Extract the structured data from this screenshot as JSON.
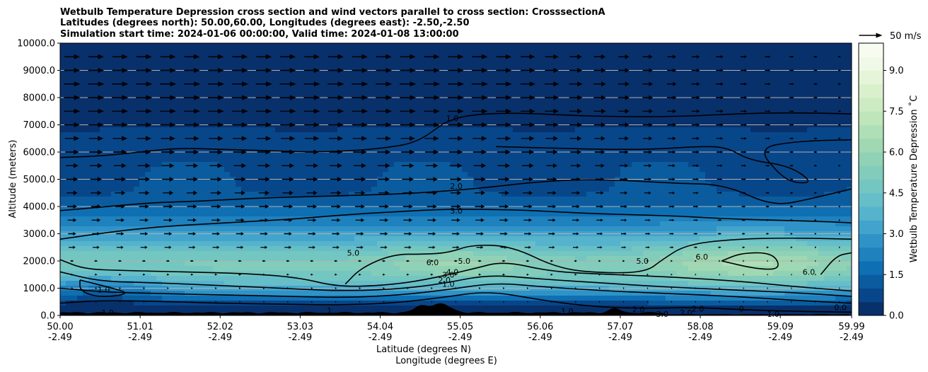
{
  "chart_data": {
    "type": "contour",
    "title_lines": [
      "Wetbulb Temperature Depression cross section and wind vectors parallel to cross section: CrosssectionA",
      "Latitudes (degrees north): 50.00,60.00, Longitudes (degrees east): -2.50,-2.50",
      "Simulation start time: 2024-01-06 00:00:00, Valid time: 2024-01-08 13:00:00"
    ],
    "ylabel": "Altitude (meters)",
    "xlabel_lines": [
      "Latitude (degrees N)",
      "Longitude (degrees E)"
    ],
    "ylim": [
      0,
      10000
    ],
    "xlim": [
      50.0,
      59.99
    ],
    "y_ticks": [
      "0.0",
      "1000.0",
      "2000.0",
      "3000.0",
      "4000.0",
      "5000.0",
      "6000.0",
      "7000.0",
      "8000.0",
      "9000.0",
      "10000.0"
    ],
    "x_ticks": [
      {
        "value": 50.0,
        "lat": "50.00",
        "lon": "-2.49"
      },
      {
        "value": 51.01,
        "lat": "51.01",
        "lon": "-2.49"
      },
      {
        "value": 52.02,
        "lat": "52.02",
        "lon": "-2.49"
      },
      {
        "value": 53.03,
        "lat": "53.03",
        "lon": "-2.49"
      },
      {
        "value": 54.04,
        "lat": "54.04",
        "lon": "-2.49"
      },
      {
        "value": 55.05,
        "lat": "55.05",
        "lon": "-2.49"
      },
      {
        "value": 56.06,
        "lat": "56.06",
        "lon": "-2.49"
      },
      {
        "value": 57.07,
        "lat": "57.07",
        "lon": "-2.49"
      },
      {
        "value": 58.08,
        "lat": "58.08",
        "lon": "-2.49"
      },
      {
        "value": 59.09,
        "lat": "59.09",
        "lon": "-2.49"
      },
      {
        "value": 59.99,
        "lat": "59.99",
        "lon": "-2.49"
      }
    ],
    "grid": "horizontal",
    "colorbar": {
      "label": "Wetbulb Temperature Depression $^\\circ$C",
      "label_display": "Wetbulb Temperature Depression ˚C",
      "min": 0.0,
      "max": 10.0,
      "ticks": [
        "0.0",
        "1.5",
        "3.0",
        "4.5",
        "6.0",
        "7.5",
        "9.0"
      ],
      "tick_values": [
        0,
        1.5,
        3.0,
        4.5,
        6.0,
        7.5,
        9.0
      ],
      "colors": [
        "#08306b",
        "#08468a",
        "#0a5c9f",
        "#0f6fb3",
        "#1f81be",
        "#2f93c8",
        "#42a4cd",
        "#56b3cc",
        "#66bec8",
        "#74c6c1",
        "#82ccbb",
        "#90d2b5",
        "#9fd8b2",
        "#afdfb6",
        "#bfe5bb",
        "#cdebc3",
        "#daf0cd",
        "#e6f5d9",
        "#f0f9e7",
        "#f7fcf0"
      ]
    },
    "quiver_key": {
      "label": "50 m/s",
      "speed": 50
    },
    "wind_rows": [
      {
        "alt": 500,
        "speed": 3
      },
      {
        "alt": 1000,
        "speed": 6
      },
      {
        "alt": 1500,
        "speed": 9
      },
      {
        "alt": 2000,
        "speed": 12
      },
      {
        "alt": 2500,
        "speed": 15
      },
      {
        "alt": 3000,
        "speed": 17
      },
      {
        "alt": 3500,
        "speed": 19
      },
      {
        "alt": 4000,
        "speed": 21
      },
      {
        "alt": 4500,
        "speed": 23
      },
      {
        "alt": 5000,
        "speed": 25
      },
      {
        "alt": 5500,
        "speed": 27
      },
      {
        "alt": 6000,
        "speed": 29
      },
      {
        "alt": 6500,
        "speed": 31
      },
      {
        "alt": 7000,
        "speed": 33
      },
      {
        "alt": 7500,
        "speed": 34
      },
      {
        "alt": 8000,
        "speed": 35
      },
      {
        "alt": 8500,
        "speed": 35
      },
      {
        "alt": 9000,
        "speed": 34
      },
      {
        "alt": 9500,
        "speed": 33
      }
    ],
    "contours": [
      {
        "level": 1.0,
        "points": [
          [
            54.84,
            7050
          ],
          [
            55.1,
            7350
          ],
          [
            55.7,
            7450
          ],
          [
            56.4,
            7350
          ],
          [
            57.0,
            7300
          ],
          [
            57.8,
            7300
          ],
          [
            58.5,
            7400
          ],
          [
            59.2,
            7450
          ],
          [
            59.99,
            7400
          ]
        ]
      },
      {
        "level": 1.0,
        "points": [
          [
            50.0,
            5800
          ],
          [
            50.5,
            5850
          ],
          [
            51.0,
            6000
          ],
          [
            51.5,
            6150
          ],
          [
            52.0,
            6100
          ],
          [
            52.6,
            6050
          ],
          [
            53.2,
            6000
          ],
          [
            53.7,
            6050
          ],
          [
            54.1,
            6150
          ],
          [
            54.5,
            6350
          ],
          [
            54.84,
            7050
          ]
        ]
      },
      {
        "level": 1.0,
        "points": [
          [
            55.5,
            6200
          ],
          [
            56.2,
            6150
          ],
          [
            56.8,
            6100
          ],
          [
            57.5,
            6100
          ],
          [
            58.0,
            6200
          ],
          [
            58.4,
            6200
          ],
          [
            58.7,
            5700
          ],
          [
            59.2,
            5500
          ],
          [
            59.5,
            4900
          ],
          [
            59.3,
            4850
          ],
          [
            59.1,
            5100
          ],
          [
            58.8,
            6150
          ],
          [
            59.3,
            6400
          ],
          [
            59.99,
            6450
          ]
        ]
      },
      {
        "level": 2.0,
        "points": [
          [
            50.0,
            3850
          ],
          [
            50.6,
            4000
          ],
          [
            51.2,
            4150
          ],
          [
            51.8,
            4200
          ],
          [
            52.4,
            4300
          ],
          [
            53.0,
            4350
          ],
          [
            53.6,
            4400
          ],
          [
            54.2,
            4450
          ],
          [
            54.8,
            4550
          ],
          [
            55.4,
            4700
          ],
          [
            56.0,
            4900
          ],
          [
            56.6,
            5000
          ],
          [
            57.2,
            4950
          ],
          [
            57.8,
            4850
          ],
          [
            58.4,
            4800
          ],
          [
            59.0,
            4000
          ],
          [
            59.5,
            4300
          ],
          [
            59.99,
            4650
          ]
        ]
      },
      {
        "level": 3.0,
        "points": [
          [
            50.0,
            2800
          ],
          [
            50.6,
            3050
          ],
          [
            51.2,
            3250
          ],
          [
            51.8,
            3350
          ],
          [
            52.4,
            3450
          ],
          [
            53.0,
            3550
          ],
          [
            53.6,
            3700
          ],
          [
            54.2,
            3800
          ],
          [
            54.8,
            3900
          ],
          [
            55.4,
            3900
          ],
          [
            56.0,
            3850
          ],
          [
            56.6,
            3750
          ],
          [
            57.2,
            3700
          ],
          [
            57.8,
            3650
          ],
          [
            58.4,
            3550
          ],
          [
            59.0,
            3500
          ],
          [
            59.6,
            3450
          ],
          [
            59.99,
            3400
          ]
        ]
      },
      {
        "level": 5.0,
        "points": [
          [
            53.6,
            1150
          ],
          [
            53.8,
            1750
          ],
          [
            54.2,
            2250
          ],
          [
            54.6,
            2250
          ],
          [
            54.9,
            2300
          ],
          [
            55.2,
            2600
          ],
          [
            55.7,
            2550
          ],
          [
            56.3,
            1700
          ],
          [
            56.9,
            1550
          ],
          [
            57.4,
            1600
          ],
          [
            57.6,
            2050
          ],
          [
            57.9,
            2600
          ],
          [
            58.5,
            2800
          ],
          [
            59.2,
            2850
          ],
          [
            59.99,
            2800
          ]
        ]
      },
      {
        "level": 6.0,
        "points": [
          [
            58.35,
            2000
          ],
          [
            58.6,
            2300
          ],
          [
            59.0,
            2300
          ],
          [
            59.1,
            1700
          ],
          [
            58.8,
            1700
          ],
          [
            58.35,
            2000
          ]
        ]
      },
      {
        "level": 6.0,
        "points": [
          [
            59.6,
            1500
          ],
          [
            59.8,
            2200
          ],
          [
            59.99,
            2300
          ]
        ]
      },
      {
        "level": 4.0,
        "points": [
          [
            50.0,
            2050
          ],
          [
            50.3,
            1700
          ],
          [
            50.8,
            1650
          ],
          [
            51.5,
            1600
          ],
          [
            52.3,
            1550
          ],
          [
            53.0,
            1400
          ],
          [
            53.5,
            1050
          ],
          [
            54.1,
            1100
          ],
          [
            54.6,
            1300
          ],
          [
            55.2,
            1700
          ],
          [
            55.6,
            2000
          ],
          [
            56.2,
            1600
          ],
          [
            57.0,
            1500
          ],
          [
            57.8,
            1400
          ],
          [
            58.6,
            1250
          ],
          [
            59.3,
            1050
          ],
          [
            59.99,
            900
          ]
        ]
      },
      {
        "level": 3.0,
        "points": [
          [
            50.0,
            1600
          ],
          [
            50.5,
            1250
          ],
          [
            51.2,
            1200
          ],
          [
            52.0,
            1100
          ],
          [
            52.8,
            1000
          ],
          [
            53.5,
            900
          ],
          [
            54.2,
            950
          ],
          [
            54.8,
            1150
          ],
          [
            55.4,
            1500
          ],
          [
            56.0,
            1350
          ],
          [
            56.8,
            1200
          ],
          [
            57.6,
            1050
          ],
          [
            58.4,
            950
          ],
          [
            59.2,
            850
          ],
          [
            59.99,
            700
          ]
        ]
      },
      {
        "level": 2.0,
        "points": [
          [
            50.0,
            1000
          ],
          [
            50.6,
            850
          ],
          [
            51.3,
            800
          ],
          [
            52.1,
            750
          ],
          [
            52.9,
            700
          ],
          [
            53.6,
            650
          ],
          [
            54.3,
            750
          ],
          [
            54.9,
            950
          ],
          [
            55.5,
            1200
          ],
          [
            56.1,
            1050
          ],
          [
            56.9,
            900
          ],
          [
            57.7,
            800
          ],
          [
            58.5,
            700
          ],
          [
            59.3,
            550
          ],
          [
            59.99,
            450
          ]
        ]
      },
      {
        "level": 1.0,
        "points": [
          [
            50.0,
            450
          ],
          [
            50.5,
            550
          ],
          [
            51.2,
            520
          ],
          [
            52.0,
            450
          ],
          [
            52.7,
            420
          ],
          [
            53.5,
            380
          ],
          [
            54.2,
            450
          ],
          [
            54.8,
            650
          ],
          [
            55.4,
            900
          ],
          [
            56.0,
            600
          ],
          [
            56.6,
            350
          ],
          [
            57.3,
            250
          ],
          [
            58.0,
            300
          ],
          [
            58.7,
            200
          ],
          [
            59.3,
            150
          ],
          [
            59.99,
            120
          ]
        ]
      },
      {
        "level": 1.0,
        "points": [
          [
            50.25,
            1300
          ],
          [
            50.6,
            1050
          ],
          [
            50.9,
            800
          ],
          [
            50.5,
            650
          ],
          [
            50.25,
            900
          ],
          [
            50.25,
            1300
          ]
        ]
      }
    ],
    "contour_labels": [
      {
        "text": "1.0",
        "x": 54.95,
        "y": 7250
      },
      {
        "text": "2.0",
        "x": 55.0,
        "y": 4750
      },
      {
        "text": "3.0",
        "x": 55.0,
        "y": 3850
      },
      {
        "text": "5.0",
        "x": 53.7,
        "y": 2300
      },
      {
        "text": "6.0",
        "x": 54.7,
        "y": 1950
      },
      {
        "text": "5.0",
        "x": 55.1,
        "y": 2000
      },
      {
        "text": "4.0",
        "x": 54.95,
        "y": 1600
      },
      {
        "text": "3.0",
        "x": 54.9,
        "y": 1500
      },
      {
        "text": "2.0",
        "x": 54.85,
        "y": 1300
      },
      {
        "text": "1.0",
        "x": 54.9,
        "y": 1150
      },
      {
        "text": "1.0",
        "x": 50.55,
        "y": 950
      },
      {
        "text": "1.0",
        "x": 50.6,
        "y": 100
      },
      {
        "text": "1",
        "x": 53.4,
        "y": 180
      },
      {
        "text": "5.0",
        "x": 57.35,
        "y": 2000
      },
      {
        "text": "6.0",
        "x": 58.1,
        "y": 2150
      },
      {
        "text": "6.0",
        "x": 59.45,
        "y": 1600
      },
      {
        "text": "1.0",
        "x": 56.4,
        "y": 150
      },
      {
        "text": "2.0",
        "x": 57.3,
        "y": 220
      },
      {
        "text": "3.0",
        "x": 57.6,
        "y": 50
      },
      {
        "text": "2.0",
        "x": 57.9,
        "y": 100
      },
      {
        "text": "2.0",
        "x": 58.05,
        "y": 250
      },
      {
        "text": "0",
        "x": 58.6,
        "y": 250
      },
      {
        "text": "1.0",
        "x": 59.0,
        "y": 50
      },
      {
        "text": "0.0",
        "x": 59.85,
        "y": 300
      }
    ]
  }
}
